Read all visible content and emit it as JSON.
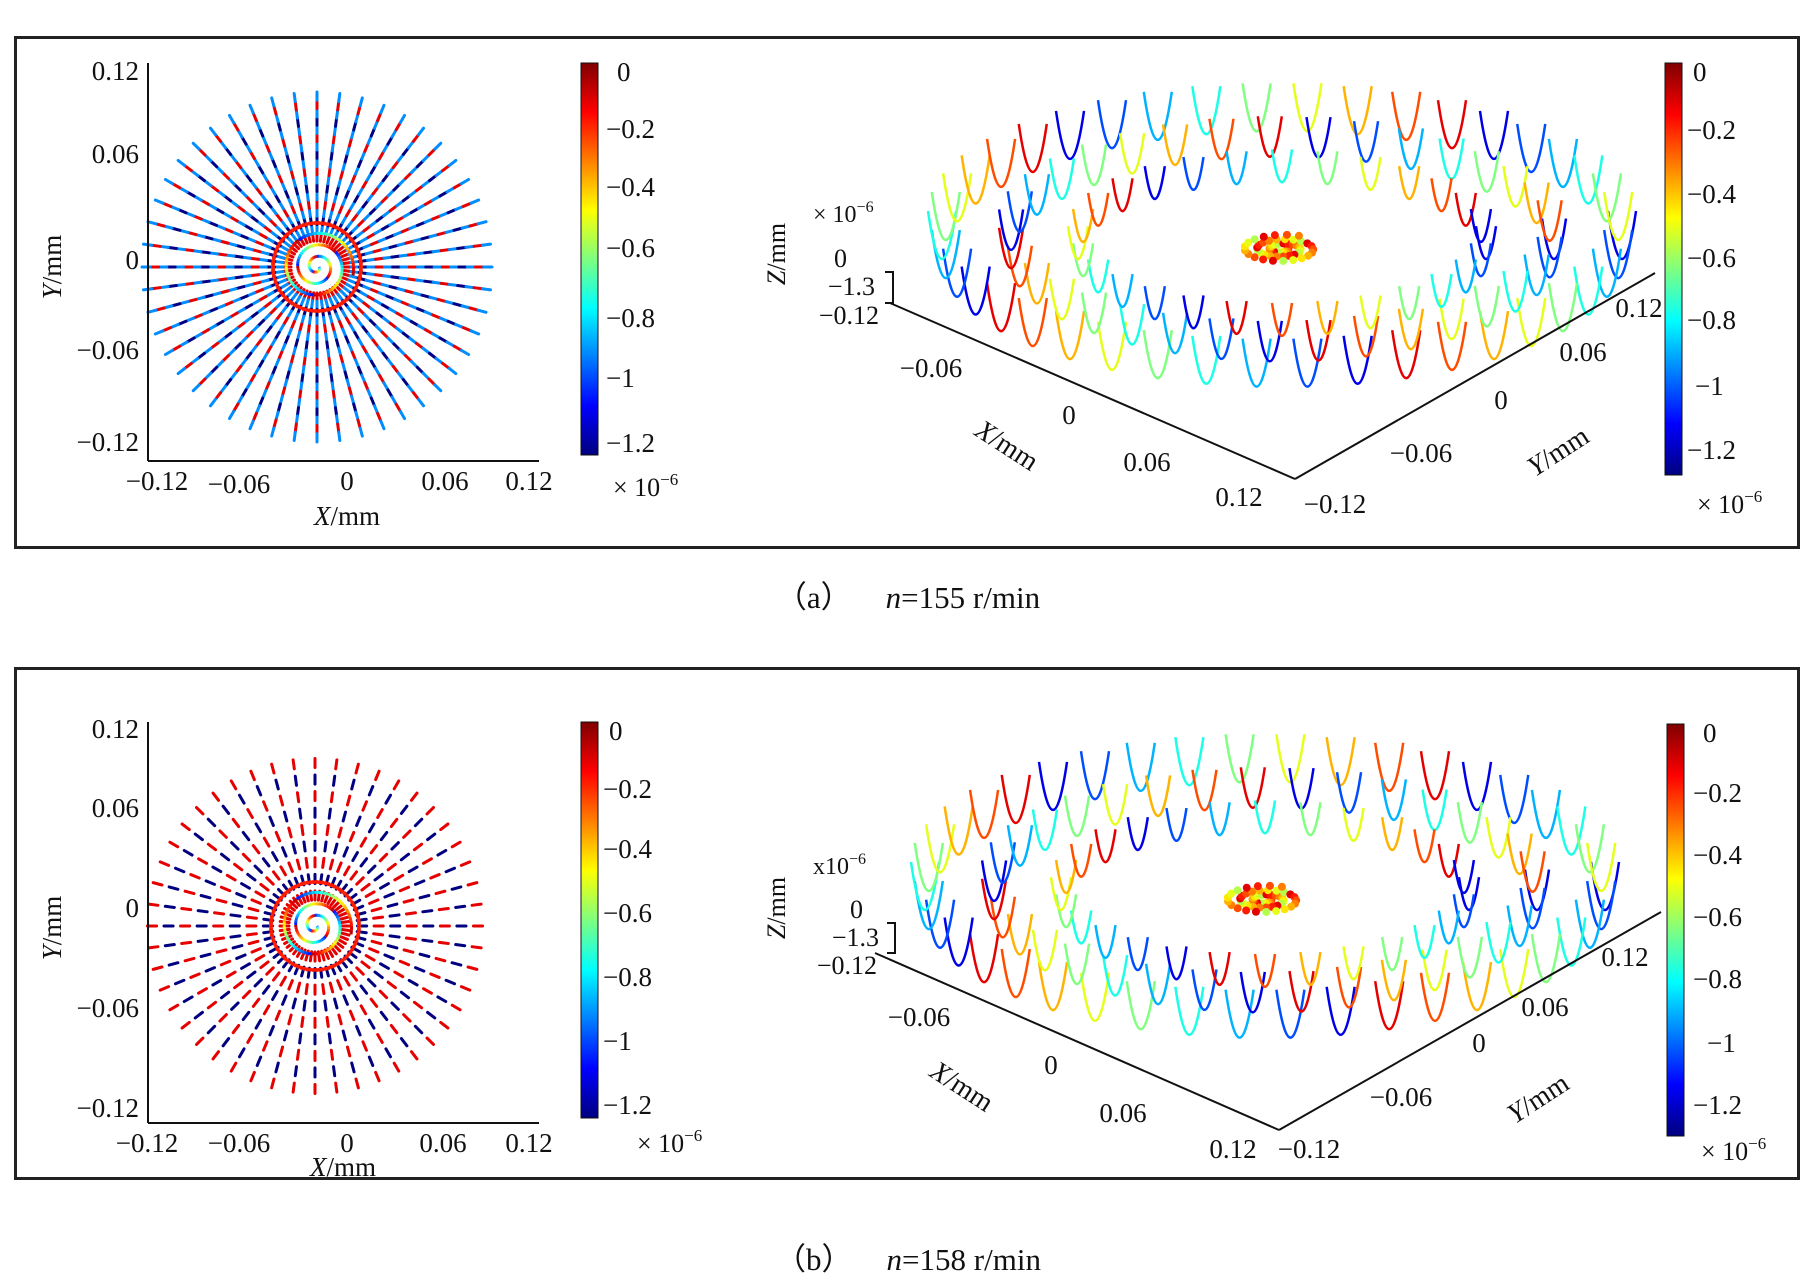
{
  "captions": [
    {
      "label": "（a）",
      "var": "n",
      "text": "=155 r/min"
    },
    {
      "label": "（b）",
      "var": "n",
      "text": "=158 r/min"
    }
  ],
  "chart_data": [
    {
      "panel": "a",
      "type": "scatter",
      "view": "top",
      "xlabel_var": "X",
      "xlabel_unit": "/mm",
      "ylabel_var": "Y",
      "ylabel_unit": "/mm",
      "xticks": [
        "−0.12",
        "−0.06",
        "0",
        "0.06",
        "0.12"
      ],
      "yticks": [
        "0.12",
        "0.06",
        "0",
        "−0.06",
        "−0.12"
      ],
      "xlim": [
        -0.12,
        0.12
      ],
      "ylim": [
        -0.12,
        0.12
      ],
      "rays": 48,
      "colorbar": {
        "ticks": [
          "0",
          "−0.2",
          "−0.4",
          "−0.6",
          "−0.8",
          "−1",
          "−1.2"
        ],
        "multiplier": "× 10",
        "exponent": "−6",
        "range": [
          -1.3,
          0
        ]
      }
    },
    {
      "panel": "a",
      "type": "scatter",
      "view": "3d",
      "xlabel_var": "X",
      "xlabel_unit": "/mm",
      "ylabel_var": "Y",
      "ylabel_unit": "/mm",
      "zlabel_var": "Z",
      "zlabel_unit": "/mm",
      "xticks": [
        "−0.06",
        "0",
        "0.06",
        "0.12"
      ],
      "yticks": [
        "−0.12",
        "−0.06",
        "0",
        "0.06",
        "0.12"
      ],
      "zticks": [
        "0",
        "−1.3",
        "−0.12"
      ],
      "zmultiplier": "× 10",
      "zexponent": "−6",
      "colorbar": {
        "ticks": [
          "0",
          "−0.2",
          "−0.4",
          "−0.6",
          "−0.8",
          "−1",
          "−1.2"
        ],
        "multiplier": "× 10",
        "exponent": "−6",
        "range": [
          -1.3,
          0
        ]
      }
    },
    {
      "panel": "b",
      "type": "scatter",
      "view": "top",
      "xlabel_var": "X",
      "xlabel_unit": "/mm",
      "ylabel_var": "Y",
      "ylabel_unit": "/mm",
      "xticks": [
        "−0.12",
        "−0.06",
        "0",
        "0.06",
        "0.12"
      ],
      "yticks": [
        "0.12",
        "0.06",
        "0",
        "−0.06",
        "−0.12"
      ],
      "xlim": [
        -0.12,
        0.12
      ],
      "ylim": [
        -0.12,
        0.12
      ],
      "rays": 48,
      "colorbar": {
        "ticks": [
          "0",
          "−0.2",
          "−0.4",
          "−0.6",
          "−0.8",
          "−1",
          "−1.2"
        ],
        "multiplier": "× 10",
        "exponent": "−6",
        "range": [
          -1.3,
          0
        ]
      }
    },
    {
      "panel": "b",
      "type": "scatter",
      "view": "3d",
      "xlabel_var": "X",
      "xlabel_unit": "/mm",
      "ylabel_var": "Y",
      "ylabel_unit": "/mm",
      "zlabel_var": "Z",
      "zlabel_unit": "/mm",
      "xticks": [
        "−0.06",
        "0",
        "0.06",
        "0.12"
      ],
      "yticks": [
        "−0.12",
        "−0.06",
        "0",
        "0.06",
        "0.12"
      ],
      "zticks": [
        "0",
        "−1.3",
        "−0.12"
      ],
      "zmultiplier": "x10",
      "zexponent": "−6",
      "colorbar": {
        "ticks": [
          "0",
          "−0.2",
          "−0.4",
          "−0.6",
          "−0.8",
          "−1",
          "−1.2"
        ],
        "multiplier": "× 10",
        "exponent": "−6",
        "range": [
          -1.3,
          0
        ]
      }
    }
  ]
}
